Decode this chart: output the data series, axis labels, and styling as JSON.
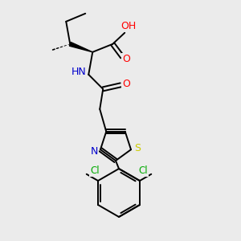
{
  "background_color": "#ebebeb",
  "atom_colors": {
    "C": "#000000",
    "N": "#0000cc",
    "O": "#ff0000",
    "S": "#cccc00",
    "Cl": "#00aa00",
    "H": "#555555"
  },
  "bond_lw": 1.4,
  "figsize": [
    3.0,
    3.0
  ],
  "dpi": 100
}
